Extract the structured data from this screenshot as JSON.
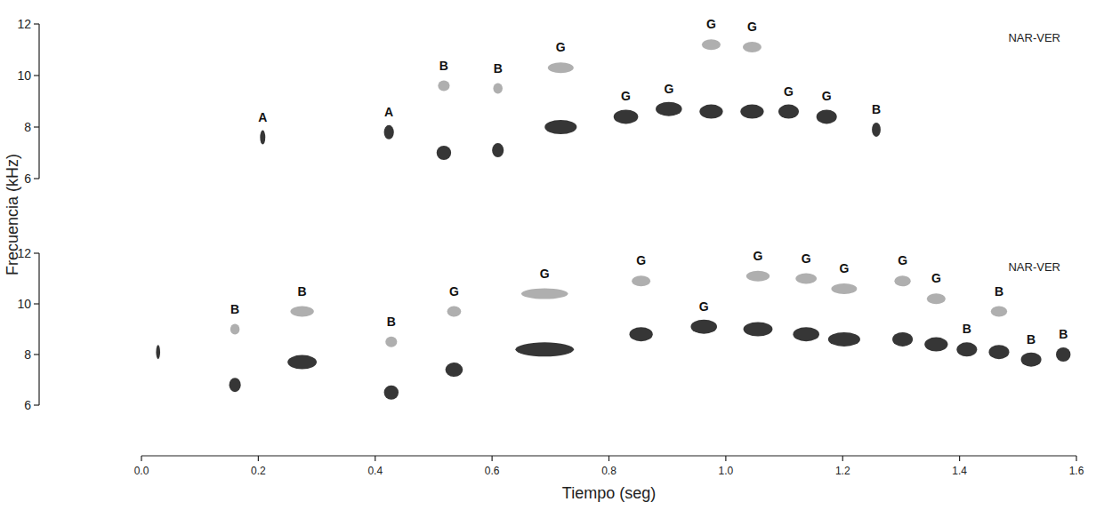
{
  "chart_data": [
    {
      "type": "scatter",
      "annotation": "NAR-VER",
      "ylabel": "Frecuencia (kHz)",
      "xlim": [
        0,
        1.6
      ],
      "ylim": [
        6,
        12
      ],
      "yticks": [
        6,
        8,
        10,
        12
      ],
      "tick_labels": "y",
      "color": "#1a1a1a",
      "x": [
        0.203,
        0.415,
        0.505,
        0.6,
        0.69,
        0.808,
        0.88,
        0.955,
        1.025,
        1.09,
        1.155,
        1.25
      ],
      "x_end": [
        0.212,
        0.432,
        0.53,
        0.62,
        0.745,
        0.85,
        0.925,
        0.995,
        1.065,
        1.125,
        1.19,
        1.265
      ],
      "values": [
        7.6,
        7.8,
        7.0,
        7.1,
        8.0,
        8.4,
        8.7,
        8.6,
        8.6,
        8.6,
        8.4,
        7.9
      ],
      "harmonic": [
        null,
        null,
        9.6,
        9.5,
        10.3,
        null,
        null,
        11.2,
        11.1,
        null,
        null,
        null
      ],
      "labels": [
        "A",
        "A",
        "B",
        "B",
        "G",
        "G",
        "G",
        "G",
        "G",
        "G",
        "G",
        "B"
      ]
    },
    {
      "type": "scatter",
      "annotation": "NAR-VER",
      "xlabel": "Tiempo (seg)",
      "xlim": [
        0,
        1.6
      ],
      "ylim": [
        6,
        12
      ],
      "yticks": [
        6,
        8,
        10,
        12
      ],
      "xticks": [
        {
          "value": 0,
          "label": "0.0"
        },
        0.2,
        0.4,
        0.6,
        0.8,
        {
          "value": 1,
          "label": "1.0"
        },
        1.2,
        1.4,
        1.6
      ],
      "tick_labels": true,
      "color": "#1a1a1a",
      "x": [
        0.025,
        0.15,
        0.25,
        0.415,
        0.52,
        0.64,
        0.835,
        0.94,
        1.03,
        1.115,
        1.175,
        1.285,
        1.34,
        1.395,
        1.45,
        1.505,
        1.565
      ],
      "x_end": [
        0.032,
        0.17,
        0.3,
        0.44,
        0.55,
        0.74,
        0.875,
        0.985,
        1.08,
        1.16,
        1.23,
        1.32,
        1.38,
        1.43,
        1.485,
        1.54,
        1.59
      ],
      "values": [
        8.1,
        6.8,
        7.7,
        6.5,
        7.4,
        8.2,
        8.8,
        9.1,
        9.0,
        8.8,
        8.6,
        8.6,
        8.4,
        8.2,
        8.1,
        7.8,
        8.0
      ],
      "harmonic": [
        null,
        9.0,
        9.7,
        8.5,
        9.7,
        10.4,
        10.9,
        null,
        11.1,
        11.0,
        10.6,
        10.9,
        10.2,
        null,
        9.7,
        null,
        null
      ],
      "labels": [
        null,
        "B",
        "B",
        "B",
        "G",
        "G",
        "G",
        "G",
        "G",
        "G",
        "G",
        "G",
        "G",
        "B",
        "B",
        "B",
        "B"
      ]
    }
  ]
}
